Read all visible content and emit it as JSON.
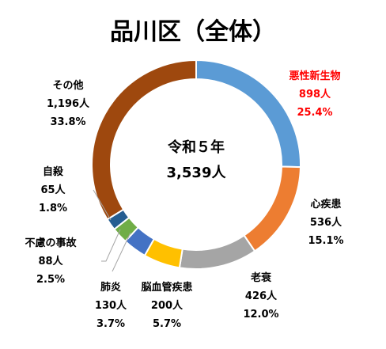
{
  "chart_data": {
    "type": "pie",
    "variant": "donut",
    "title": "品川区（全体）",
    "center_label": [
      "令和５年",
      "3,539人"
    ],
    "series": [
      {
        "name": "悪性新生物",
        "count": "898人",
        "percent_label": "25.4%",
        "value": 898,
        "percent": 25.4,
        "color": "#5B9BD5",
        "label_color": "#FF0000"
      },
      {
        "name": "心疾患",
        "count": "536人",
        "percent_label": "15.1%",
        "value": 536,
        "percent": 15.1,
        "color": "#ED7D31",
        "label_color": "#000000"
      },
      {
        "name": "老衰",
        "count": "426人",
        "percent_label": "12.0%",
        "value": 426,
        "percent": 12.0,
        "color": "#A5A5A5",
        "label_color": "#000000"
      },
      {
        "name": "脳血管疾患",
        "count": "200人",
        "percent_label": "5.7%",
        "value": 200,
        "percent": 5.7,
        "color": "#FFC000",
        "label_color": "#000000"
      },
      {
        "name": "肺炎",
        "count": "130人",
        "percent_label": "3.7%",
        "value": 130,
        "percent": 3.7,
        "color": "#4472C4",
        "label_color": "#000000"
      },
      {
        "name": "不慮の事故",
        "count": "88人",
        "percent_label": "2.5%",
        "value": 88,
        "percent": 2.5,
        "color": "#70AD47",
        "label_color": "#000000"
      },
      {
        "name": "自殺",
        "count": "65人",
        "percent_label": "1.8%",
        "value": 65,
        "percent": 1.8,
        "color": "#255E91",
        "label_color": "#000000"
      },
      {
        "name": "その他",
        "count": "1,196人",
        "percent_label": "33.8%",
        "value": 1196,
        "percent": 33.8,
        "color": "#9E480E",
        "label_color": "#000000"
      }
    ],
    "legend": "none"
  }
}
